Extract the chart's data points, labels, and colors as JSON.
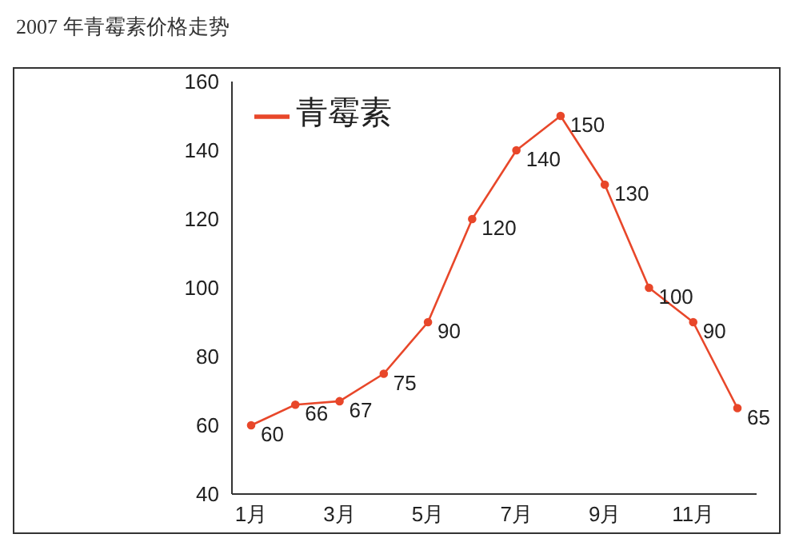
{
  "chart_data": {
    "type": "line",
    "title": "2007 年青霉素价格走势",
    "categories": [
      "1月",
      null,
      "3月",
      null,
      "5月",
      null,
      "7月",
      null,
      "9月",
      null,
      "11月",
      null
    ],
    "series": [
      {
        "name": "青霉素",
        "color": "#e8472a",
        "values": [
          60,
          66,
          67,
          75,
          90,
          120,
          140,
          150,
          130,
          100,
          90,
          65
        ]
      }
    ],
    "ylim": [
      40,
      160
    ],
    "yticks": [
      40,
      60,
      80,
      100,
      120,
      140,
      160
    ],
    "grid": false,
    "legend": "top left",
    "marker": "circle",
    "line_style": "solid",
    "data_labels": true
  }
}
